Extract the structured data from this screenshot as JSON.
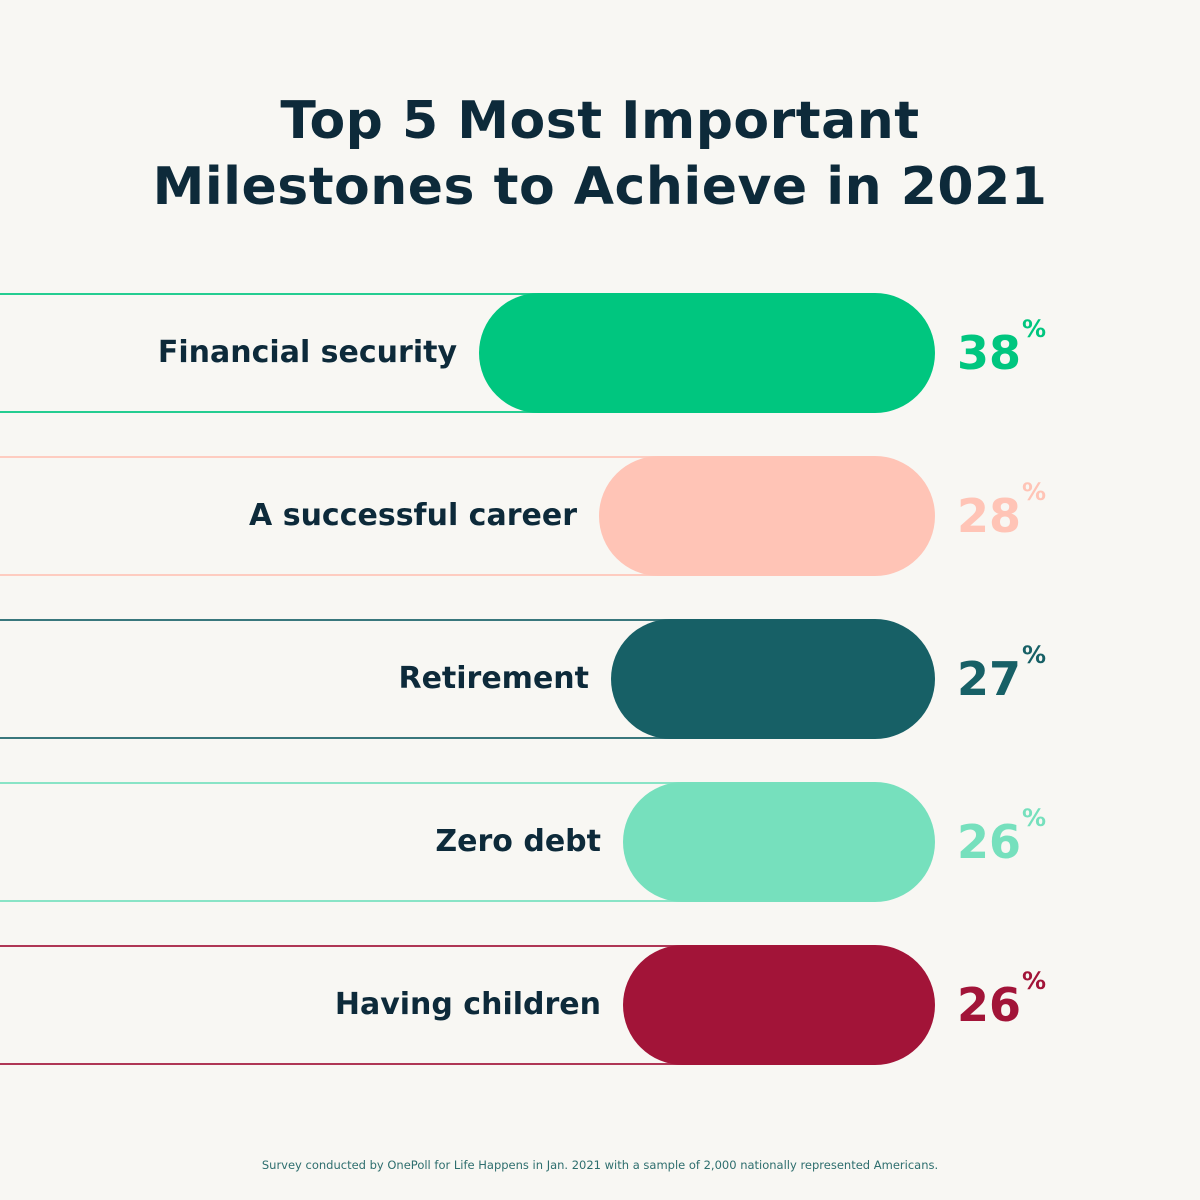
{
  "chart_data": {
    "type": "bar",
    "orientation": "horizontal",
    "title_lines": [
      "Top 5 Most Important",
      "Milestones to Achieve in 2021"
    ],
    "categories": [
      "Financial security",
      "A successful career",
      "Retirement",
      "Zero debt",
      "Having children"
    ],
    "values": [
      38,
      28,
      27,
      26,
      26
    ],
    "unit": "%",
    "colors": [
      "#00c67f",
      "#ffc4b6",
      "#176066",
      "#76e0bd",
      "#a21438"
    ],
    "grid": false,
    "legend": "none"
  },
  "footer": "Survey conducted by OnePoll for Life Happens in Jan. 2021 with a sample of 2,000 nationally represented Americans."
}
